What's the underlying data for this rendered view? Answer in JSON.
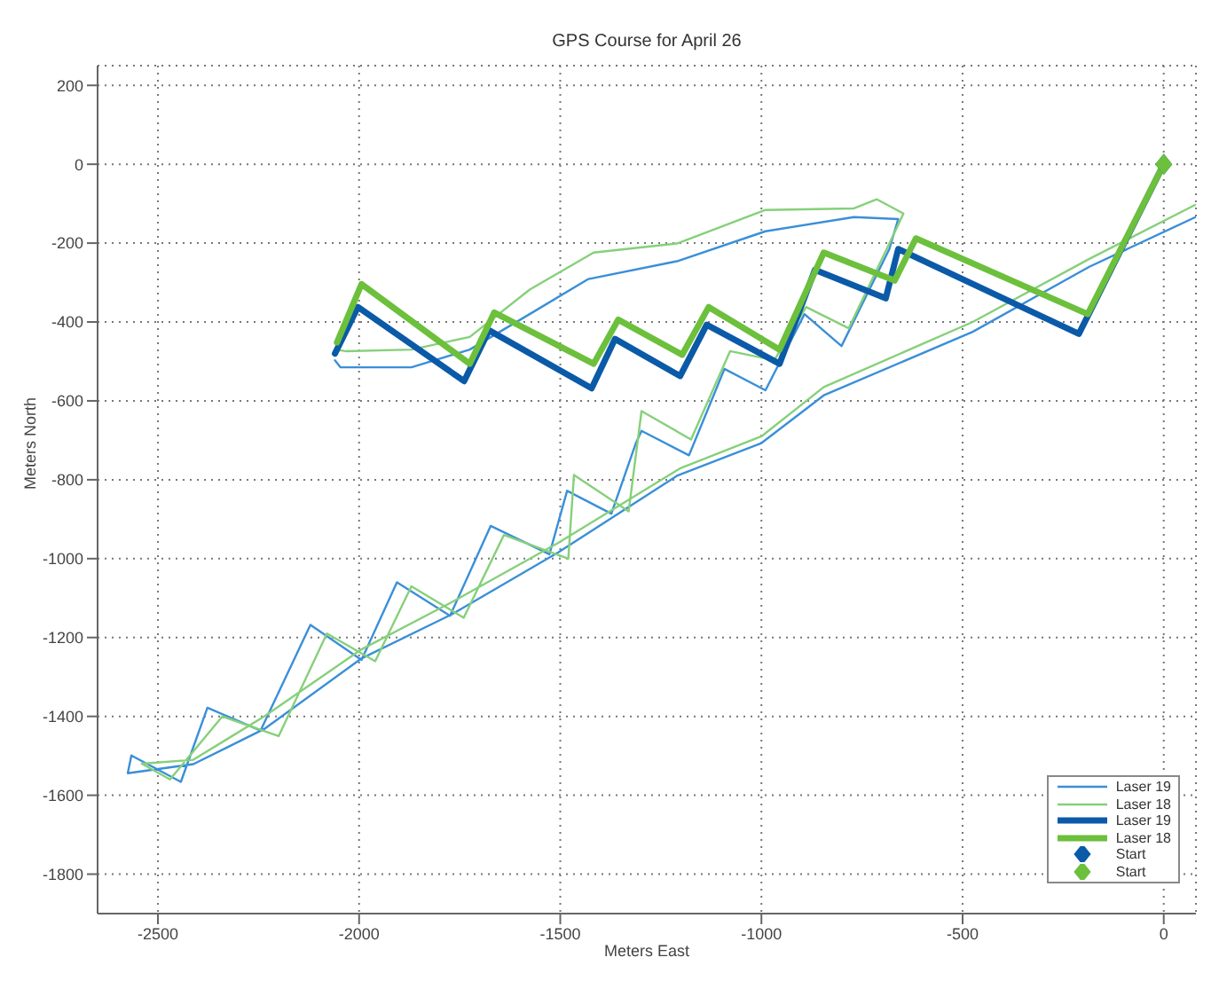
{
  "chart_data": {
    "type": "line",
    "title": "GPS Course for April 26",
    "xlabel": "Meters East",
    "ylabel": "Meters North",
    "xlim": [
      -2650,
      80
    ],
    "xticks": [
      -2500,
      -2000,
      -1500,
      -1000,
      -500,
      0
    ],
    "ylim": [
      -1900,
      250
    ],
    "yticks": [
      -1800,
      -1600,
      -1400,
      -1200,
      -1000,
      -800,
      -600,
      -400,
      -200,
      0,
      200
    ],
    "grid": true,
    "legend": "bottom right",
    "marker": "none",
    "line_style": "solid",
    "series": [
      {
        "name": "Laser 19",
        "color": "#3a8fd8",
        "x": [
          79,
          -185,
          -475,
          -845,
          -1000,
          -1210,
          -1505,
          -1769,
          -1994,
          -2236,
          -2412,
          -2575,
          -2566,
          -2443,
          -2377,
          -2245,
          -2121,
          -1994,
          -1906,
          -1774,
          -1673,
          -1527,
          -1483,
          -1373,
          -1312,
          -1298,
          -1180,
          -1092,
          -990,
          -893,
          -801,
          -682,
          -660,
          -770,
          -990,
          -1210,
          -1430,
          -1576,
          -1725,
          -1870,
          -2046,
          -2060
        ],
        "values": [
          -134,
          -260,
          -425,
          -586,
          -707,
          -790,
          -984,
          -1141,
          -1253,
          -1432,
          -1521,
          -1544,
          -1499,
          -1566,
          -1378,
          -1436,
          -1168,
          -1257,
          -1060,
          -1145,
          -917,
          -989,
          -828,
          -886,
          -707,
          -676,
          -738,
          -519,
          -573,
          -380,
          -461,
          -215,
          -139,
          -134,
          -170,
          -246,
          -291,
          -380,
          -470,
          -515,
          -515,
          -497
        ]
      },
      {
        "name": "Laser 18",
        "color": "#86d07a",
        "x": [
          78,
          -185,
          -475,
          -845,
          -1000,
          -1200,
          -1505,
          -1769,
          -1994,
          -2236,
          -2412,
          -2540,
          -2470,
          -2340,
          -2200,
          -2080,
          -1960,
          -1870,
          -1740,
          -1640,
          -1480,
          -1466,
          -1330,
          -1298,
          -1175,
          -1078,
          -968,
          -889,
          -783,
          -682,
          -647,
          -713,
          -770,
          -990,
          -1210,
          -1417,
          -1576,
          -1725,
          -1870,
          -2033,
          -2060
        ],
        "values": [
          -103,
          -240,
          -400,
          -565,
          -690,
          -770,
          -960,
          -1110,
          -1230,
          -1400,
          -1510,
          -1520,
          -1560,
          -1400,
          -1450,
          -1190,
          -1260,
          -1070,
          -1150,
          -940,
          -1000,
          -788,
          -880,
          -626,
          -698,
          -474,
          -497,
          -362,
          -416,
          -201,
          -125,
          -89,
          -112,
          -116,
          -201,
          -224,
          -318,
          -438,
          -470,
          -474,
          -470
        ]
      },
      {
        "name": "Laser 19",
        "color": "#0b5aa8",
        "x": [
          -2060,
          -2003,
          -1739,
          -1677,
          -1422,
          -1364,
          -1202,
          -1136,
          -955,
          -867,
          -691,
          -660,
          -211,
          0
        ],
        "values": [
          -480,
          -362,
          -550,
          -421,
          -568,
          -443,
          -537,
          -407,
          -506,
          -268,
          -340,
          -215,
          -430,
          0
        ]
      },
      {
        "name": "Laser 18",
        "color": "#6cc03c",
        "x": [
          -2055,
          -1994,
          -1725,
          -1664,
          -1417,
          -1356,
          -1197,
          -1131,
          -955,
          -845,
          -669,
          -616,
          -189,
          0
        ],
        "values": [
          -452,
          -304,
          -506,
          -376,
          -506,
          -394,
          -483,
          -362,
          -470,
          -224,
          -295,
          -188,
          -380,
          0
        ]
      },
      {
        "name": "Start",
        "type": "scatter",
        "marker": "diamond",
        "color": "#0b5aa8",
        "x": [
          0
        ],
        "values": [
          0
        ]
      },
      {
        "name": "Start",
        "type": "scatter",
        "marker": "diamond",
        "color": "#6cc03c",
        "x": [
          0
        ],
        "values": [
          0
        ]
      }
    ]
  }
}
